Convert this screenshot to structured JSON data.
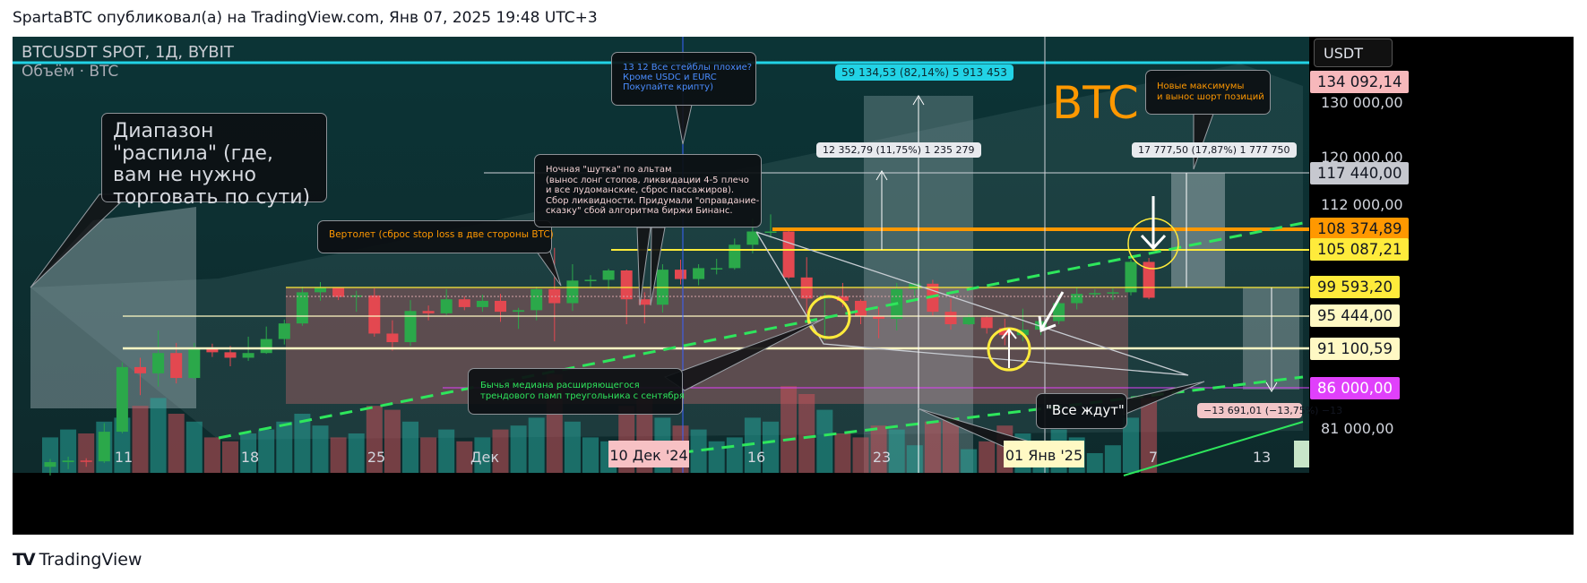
{
  "header": "SpartaBTC опубликовал(а) на TradingView.com, Янв 07, 2025 19:48 UTC+3",
  "brand": {
    "logo": "TV",
    "name": "TradingView"
  },
  "chart": {
    "symbol_line": "BTCUSDT SPOT, 1Д, BYBIT",
    "volume_line": "Объём · BTC",
    "currency": "USDT",
    "watermark": "BTC"
  },
  "annotations": {
    "range": "Диапазон \"распила\" (где, вам не нужно торговать по сути)",
    "helicopter": "Вертолет (сброс stop loss в две стороны BTC)",
    "stablecoins_l1": "13 12 Все стейблы плохие?",
    "stablecoins_l2": "Кроме USDC и EURC",
    "stablecoins_l3": "Покупайте крипту)",
    "night_l1": "Ночная \"шутка\" по альтам",
    "night_l2": "(вынос лонг стопов, ликвидации 4-5 плечо",
    "night_l3": "и все лудоманские, сброс пассажиров).",
    "night_l4": "Сбор ликвидности. Придумали \"оправдание-",
    "night_l5": "сказку\" сбой алгоритма биржи Бинанс.",
    "median_l1": "Бычья медиана расширяющегося",
    "median_l2": "трендового памп треугольника с сентября",
    "new_highs_l1": "Новые максимумы",
    "new_highs_l2": "и вынос шорт позиций",
    "all_waiting": "\"Все ждут\""
  },
  "measures": {
    "m1": "59 134,53 (82,14%) 5 913 453",
    "m2": "12 352,79 (11,75%) 1 235 279",
    "m3": "17 777,50 (17,87%) 1 777 750",
    "m4": "−13 691,01 (−13,75%) −13"
  },
  "price_tags": [
    {
      "label": "134 092,14",
      "bg": "#f7b8bb",
      "fg": "#131722"
    },
    {
      "label": "117 440,00",
      "bg": "#c6c8cf",
      "fg": "#131722"
    },
    {
      "label": "108 374,89",
      "bg": "#ff9800",
      "fg": "#131722"
    },
    {
      "label": "105 087,21",
      "bg": "#ffeb3b",
      "fg": "#131722"
    },
    {
      "label": "99 593,20",
      "bg": "#ffeb3b",
      "fg": "#131722"
    },
    {
      "label": "95 444,00",
      "bg": "#fff9c4",
      "fg": "#131722"
    },
    {
      "label": "91 100,59",
      "bg": "#fff9c4",
      "fg": "#131722"
    },
    {
      "label": "86 000,00",
      "bg": "#e040fb",
      "fg": "#ffffff"
    }
  ],
  "y_labels": [
    "130 000,00",
    "120 000,00",
    "112 000,00",
    "81 000,00"
  ],
  "x_labels": [
    "11",
    "18",
    "25",
    "Дек",
    "16",
    "23",
    "7",
    "13"
  ],
  "x_highlights": {
    "dec10": "10 Дек '24",
    "jan01": "01 Янв '25"
  },
  "chart_data": {
    "type": "candlestick",
    "symbol": "BTCUSDT",
    "timeframe": "1D",
    "exchange": "BYBIT",
    "y_axis_unit": "USDT",
    "horizontal_levels": [
      117440.0,
      108374.89,
      105087.21,
      99593.2,
      95444.0,
      91100.59,
      86000.0
    ],
    "last_price_tag": 134092.14,
    "x_range": [
      "2024-11-07",
      "2025-01-15"
    ],
    "candles": [
      {
        "d": "2024-11-07",
        "o": 75900,
        "h": 76900,
        "l": 74800,
        "c": 76500
      },
      {
        "d": "2024-11-08",
        "o": 76500,
        "h": 77200,
        "l": 75600,
        "c": 76700
      },
      {
        "d": "2024-11-09",
        "o": 76700,
        "h": 77000,
        "l": 75900,
        "c": 76600
      },
      {
        "d": "2024-11-10",
        "o": 76600,
        "h": 81500,
        "l": 76400,
        "c": 80400
      },
      {
        "d": "2024-11-11",
        "o": 80400,
        "h": 89300,
        "l": 80200,
        "c": 88700
      },
      {
        "d": "2024-11-12",
        "o": 88700,
        "h": 89900,
        "l": 85100,
        "c": 87900
      },
      {
        "d": "2024-11-13",
        "o": 87900,
        "h": 93400,
        "l": 86200,
        "c": 90500
      },
      {
        "d": "2024-11-14",
        "o": 90500,
        "h": 91800,
        "l": 86600,
        "c": 87300
      },
      {
        "d": "2024-11-15",
        "o": 87300,
        "h": 91800,
        "l": 87100,
        "c": 91100
      },
      {
        "d": "2024-11-16",
        "o": 91100,
        "h": 91700,
        "l": 90000,
        "c": 90600
      },
      {
        "d": "2024-11-17",
        "o": 90600,
        "h": 91400,
        "l": 88800,
        "c": 89900
      },
      {
        "d": "2024-11-18",
        "o": 89900,
        "h": 92600,
        "l": 89500,
        "c": 90500
      },
      {
        "d": "2024-11-19",
        "o": 90500,
        "h": 93900,
        "l": 90400,
        "c": 92300
      },
      {
        "d": "2024-11-20",
        "o": 92300,
        "h": 94800,
        "l": 91600,
        "c": 94300
      },
      {
        "d": "2024-11-21",
        "o": 94300,
        "h": 99000,
        "l": 94000,
        "c": 98300
      },
      {
        "d": "2024-11-22",
        "o": 98300,
        "h": 99600,
        "l": 97200,
        "c": 98900
      },
      {
        "d": "2024-11-23",
        "o": 98900,
        "h": 98800,
        "l": 97300,
        "c": 97700
      },
      {
        "d": "2024-11-24",
        "o": 97700,
        "h": 98500,
        "l": 95800,
        "c": 97900
      },
      {
        "d": "2024-11-25",
        "o": 97900,
        "h": 98800,
        "l": 92600,
        "c": 93000
      },
      {
        "d": "2024-11-26",
        "o": 93000,
        "h": 94700,
        "l": 90800,
        "c": 91900
      },
      {
        "d": "2024-11-27",
        "o": 91900,
        "h": 97300,
        "l": 91400,
        "c": 95900
      },
      {
        "d": "2024-11-28",
        "o": 95900,
        "h": 96600,
        "l": 94700,
        "c": 95600
      },
      {
        "d": "2024-11-29",
        "o": 95600,
        "h": 98700,
        "l": 95400,
        "c": 97400
      },
      {
        "d": "2024-11-30",
        "o": 97400,
        "h": 97800,
        "l": 96000,
        "c": 96400
      },
      {
        "d": "2024-12-01",
        "o": 96400,
        "h": 98000,
        "l": 95800,
        "c": 97200
      },
      {
        "d": "2024-12-02",
        "o": 97200,
        "h": 98100,
        "l": 94500,
        "c": 95800
      },
      {
        "d": "2024-12-03",
        "o": 95800,
        "h": 96300,
        "l": 93600,
        "c": 96000
      },
      {
        "d": "2024-12-04",
        "o": 96000,
        "h": 99000,
        "l": 94700,
        "c": 98700
      },
      {
        "d": "2024-12-05",
        "o": 98700,
        "h": 104000,
        "l": 92000,
        "c": 96900
      },
      {
        "d": "2024-12-06",
        "o": 96900,
        "h": 101900,
        "l": 95900,
        "c": 99800
      },
      {
        "d": "2024-12-07",
        "o": 99800,
        "h": 100500,
        "l": 99000,
        "c": 99900
      },
      {
        "d": "2024-12-08",
        "o": 99900,
        "h": 101300,
        "l": 98700,
        "c": 101100
      },
      {
        "d": "2024-12-09",
        "o": 101100,
        "h": 101200,
        "l": 94200,
        "c": 97400
      },
      {
        "d": "2024-12-10",
        "o": 97400,
        "h": 98300,
        "l": 94300,
        "c": 96700
      },
      {
        "d": "2024-12-11",
        "o": 96700,
        "h": 101900,
        "l": 95700,
        "c": 101200
      },
      {
        "d": "2024-12-12",
        "o": 101200,
        "h": 102500,
        "l": 99300,
        "c": 100000
      },
      {
        "d": "2024-12-13",
        "o": 100000,
        "h": 101900,
        "l": 99200,
        "c": 101400
      },
      {
        "d": "2024-12-14",
        "o": 101400,
        "h": 102600,
        "l": 100600,
        "c": 101400
      },
      {
        "d": "2024-12-15",
        "o": 101400,
        "h": 105200,
        "l": 101200,
        "c": 104400
      },
      {
        "d": "2024-12-16",
        "o": 104400,
        "h": 107800,
        "l": 103300,
        "c": 106100
      },
      {
        "d": "2024-12-17",
        "o": 106100,
        "h": 108300,
        "l": 105300,
        "c": 106100
      },
      {
        "d": "2024-12-18",
        "o": 106100,
        "h": 106500,
        "l": 100000,
        "c": 100200
      },
      {
        "d": "2024-12-19",
        "o": 100200,
        "h": 102800,
        "l": 95600,
        "c": 97500
      },
      {
        "d": "2024-12-20",
        "o": 97500,
        "h": 98200,
        "l": 92100,
        "c": 97800
      },
      {
        "d": "2024-12-21",
        "o": 97800,
        "h": 99500,
        "l": 96400,
        "c": 97200
      },
      {
        "d": "2024-12-22",
        "o": 97200,
        "h": 97400,
        "l": 94200,
        "c": 95200
      },
      {
        "d": "2024-12-23",
        "o": 95200,
        "h": 96400,
        "l": 92400,
        "c": 94900
      },
      {
        "d": "2024-12-24",
        "o": 94900,
        "h": 99500,
        "l": 93400,
        "c": 98700
      },
      {
        "d": "2024-12-25",
        "o": 98700,
        "h": 99500,
        "l": 97600,
        "c": 99400
      },
      {
        "d": "2024-12-26",
        "o": 99400,
        "h": 99900,
        "l": 95200,
        "c": 95800
      },
      {
        "d": "2024-12-27",
        "o": 95800,
        "h": 97500,
        "l": 93500,
        "c": 94200
      },
      {
        "d": "2024-12-28",
        "o": 94200,
        "h": 95500,
        "l": 94100,
        "c": 95100
      },
      {
        "d": "2024-12-29",
        "o": 95100,
        "h": 95200,
        "l": 93000,
        "c": 93700
      },
      {
        "d": "2024-12-30",
        "o": 93700,
        "h": 94900,
        "l": 91500,
        "c": 92800
      },
      {
        "d": "2024-12-31",
        "o": 92800,
        "h": 96200,
        "l": 92000,
        "c": 93500
      },
      {
        "d": "2025-01-01",
        "o": 93500,
        "h": 95000,
        "l": 92800,
        "c": 94600
      },
      {
        "d": "2025-01-02",
        "o": 94600,
        "h": 98000,
        "l": 94200,
        "c": 96900
      },
      {
        "d": "2025-01-03",
        "o": 96900,
        "h": 98900,
        "l": 96100,
        "c": 98100
      },
      {
        "d": "2025-01-04",
        "o": 98100,
        "h": 98700,
        "l": 97700,
        "c": 98200
      },
      {
        "d": "2025-01-05",
        "o": 98200,
        "h": 98800,
        "l": 97300,
        "c": 98300
      },
      {
        "d": "2025-01-06",
        "o": 98300,
        "h": 102500,
        "l": 97900,
        "c": 102200
      },
      {
        "d": "2025-01-07",
        "o": 102200,
        "h": 102700,
        "l": 97400,
        "c": 97600
      }
    ],
    "volume": [
      18,
      22,
      20,
      26,
      28,
      34,
      38,
      30,
      26,
      18,
      16,
      20,
      22,
      26,
      30,
      24,
      18,
      20,
      34,
      32,
      26,
      18,
      22,
      16,
      18,
      22,
      24,
      28,
      50,
      26,
      18,
      16,
      34,
      38,
      28,
      24,
      22,
      16,
      18,
      28,
      26,
      44,
      40,
      32,
      20,
      18,
      24,
      22,
      14,
      26,
      28,
      12,
      16,
      24,
      20,
      16,
      22,
      18,
      10,
      14,
      28,
      38
    ]
  }
}
